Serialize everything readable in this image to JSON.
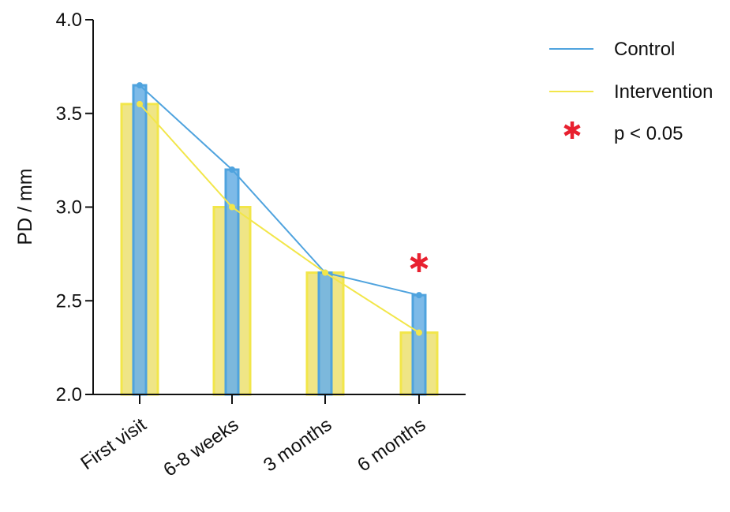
{
  "chart_data": {
    "type": "bar",
    "categories": [
      "First visit",
      "6-8 weeks",
      "3 months",
      "6 months"
    ],
    "series": [
      {
        "name": "Control",
        "values": [
          3.65,
          3.2,
          2.65,
          2.53
        ],
        "color": "#4fa3de",
        "fill": "#6fb3e6"
      },
      {
        "name": "Intervention",
        "values": [
          3.55,
          3.0,
          2.65,
          2.33
        ],
        "color": "#f2e64a",
        "fill": "#efe586"
      }
    ],
    "ylabel": "PD  /  mm",
    "xlabel": "",
    "ylim": [
      2.0,
      4.0
    ],
    "yticks": [
      "2.0",
      "2.5",
      "3.0",
      "3.5",
      "4.0"
    ],
    "significance": {
      "category": "6 months",
      "marker": "*",
      "color": "#e8202f"
    },
    "legend": {
      "position": "top-right",
      "significance_label": "p < 0.05"
    },
    "grid": false
  }
}
